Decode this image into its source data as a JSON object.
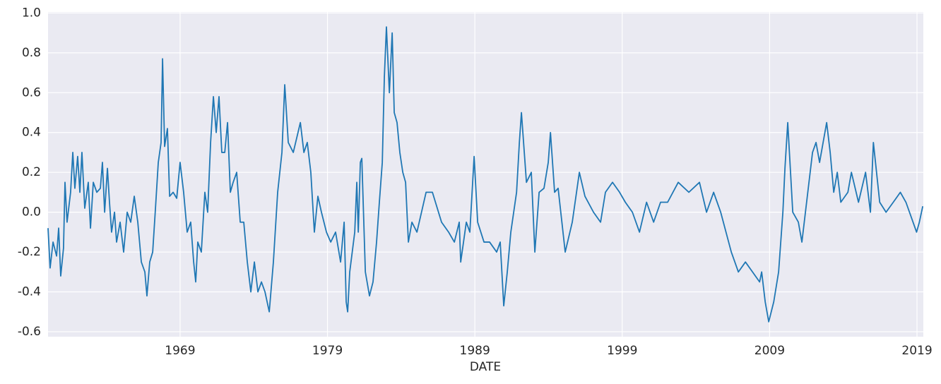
{
  "chart_data": {
    "type": "line",
    "xlabel": "DATE",
    "x": [
      1960.04,
      1960.18,
      1960.38,
      1960.62,
      1960.76,
      1960.9,
      1961.09,
      1961.19,
      1961.33,
      1961.57,
      1961.72,
      1961.86,
      1962.05,
      1962.2,
      1962.34,
      1962.53,
      1962.77,
      1962.92,
      1963.11,
      1963.35,
      1963.59,
      1963.73,
      1963.88,
      1964.07,
      1964.21,
      1964.35,
      1964.55,
      1964.69,
      1964.93,
      1965.17,
      1965.41,
      1965.65,
      1965.89,
      1966.13,
      1966.37,
      1966.61,
      1966.75,
      1966.94,
      1967.14,
      1967.33,
      1967.52,
      1967.71,
      1967.81,
      1967.95,
      1968.14,
      1968.29,
      1968.53,
      1968.77,
      1969.0,
      1969.24,
      1969.48,
      1969.72,
      1969.92,
      1970.06,
      1970.2,
      1970.44,
      1970.68,
      1970.87,
      1971.07,
      1971.26,
      1971.45,
      1971.64,
      1971.83,
      1972.03,
      1972.22,
      1972.41,
      1972.6,
      1972.84,
      1973.08,
      1973.32,
      1973.56,
      1973.8,
      1974.04,
      1974.28,
      1974.52,
      1974.76,
      1975.05,
      1975.33,
      1975.62,
      1975.91,
      1976.1,
      1976.34,
      1976.68,
      1977.16,
      1977.4,
      1977.63,
      1977.87,
      1978.11,
      1978.35,
      1978.59,
      1978.93,
      1979.22,
      1979.55,
      1979.89,
      1980.13,
      1980.27,
      1980.37,
      1980.51,
      1980.85,
      1980.99,
      1981.09,
      1981.23,
      1981.33,
      1981.57,
      1981.85,
      1982.09,
      1982.33,
      1982.52,
      1982.72,
      1982.86,
      1983.0,
      1983.2,
      1983.39,
      1983.53,
      1983.72,
      1983.91,
      1984.11,
      1984.3,
      1984.49,
      1984.73,
      1985.07,
      1985.69,
      1986.12,
      1986.74,
      1987.22,
      1987.61,
      1987.94,
      1988.04,
      1988.42,
      1988.66,
      1988.95,
      1989.19,
      1989.62,
      1990.0,
      1990.48,
      1990.72,
      1990.96,
      1991.2,
      1991.44,
      1991.83,
      1992.02,
      1992.16,
      1992.5,
      1992.83,
      1993.07,
      1993.36,
      1993.69,
      1993.98,
      1994.13,
      1994.41,
      1994.65,
      1995.13,
      1995.61,
      1996.09,
      1996.47,
      1997.05,
      1997.53,
      1997.86,
      1998.34,
      1998.82,
      1999.21,
      1999.69,
      2000.17,
      2000.65,
      2001.13,
      2001.6,
      2002.08,
      2002.8,
      2003.52,
      2004.24,
      2004.72,
      2005.2,
      2005.68,
      2006.4,
      2006.88,
      2007.36,
      2007.84,
      2008.32,
      2008.46,
      2008.7,
      2008.94,
      2009.28,
      2009.61,
      2009.9,
      2010.04,
      2010.23,
      2010.57,
      2010.95,
      2011.19,
      2011.43,
      2011.67,
      2011.91,
      2012.15,
      2012.39,
      2012.87,
      2013.11,
      2013.35,
      2013.59,
      2013.83,
      2014.31,
      2014.55,
      2015.03,
      2015.51,
      2015.84,
      2016.04,
      2016.47,
      2016.9,
      2017.39,
      2017.87,
      2018.25,
      2018.73,
      2018.97,
      2019.16,
      2019.39
    ],
    "series": [
      {
        "color": "#1f77b4",
        "values": [
          -0.08,
          -0.28,
          -0.15,
          -0.22,
          -0.08,
          -0.32,
          -0.18,
          0.15,
          -0.05,
          0.1,
          0.3,
          0.12,
          0.28,
          0.1,
          0.3,
          0.02,
          0.15,
          -0.08,
          0.15,
          0.1,
          0.12,
          0.25,
          0.0,
          0.22,
          0.05,
          -0.1,
          0.0,
          -0.15,
          -0.05,
          -0.2,
          0.0,
          -0.05,
          0.08,
          -0.05,
          -0.25,
          -0.3,
          -0.42,
          -0.25,
          -0.2,
          0.02,
          0.25,
          0.35,
          0.77,
          0.33,
          0.42,
          0.08,
          0.1,
          0.07,
          0.25,
          0.1,
          -0.1,
          -0.05,
          -0.25,
          -0.35,
          -0.15,
          -0.2,
          0.1,
          0.0,
          0.35,
          0.58,
          0.4,
          0.58,
          0.3,
          0.3,
          0.45,
          0.1,
          0.15,
          0.2,
          -0.05,
          -0.05,
          -0.25,
          -0.4,
          -0.25,
          -0.4,
          -0.35,
          -0.4,
          -0.5,
          -0.25,
          0.1,
          0.3,
          0.64,
          0.35,
          0.3,
          0.45,
          0.3,
          0.35,
          0.2,
          -0.1,
          0.08,
          0.0,
          -0.1,
          -0.15,
          -0.1,
          -0.25,
          -0.05,
          -0.45,
          -0.5,
          -0.3,
          -0.1,
          0.15,
          -0.1,
          0.25,
          0.27,
          -0.3,
          -0.42,
          -0.35,
          -0.15,
          0.05,
          0.25,
          0.68,
          0.93,
          0.6,
          0.9,
          0.5,
          0.45,
          0.3,
          0.2,
          0.15,
          -0.15,
          -0.05,
          -0.1,
          0.1,
          0.1,
          -0.05,
          -0.1,
          -0.15,
          -0.05,
          -0.25,
          -0.05,
          -0.1,
          0.28,
          -0.05,
          -0.15,
          -0.15,
          -0.2,
          -0.15,
          -0.47,
          -0.3,
          -0.1,
          0.1,
          0.35,
          0.5,
          0.15,
          0.2,
          -0.2,
          0.1,
          0.12,
          0.25,
          0.4,
          0.1,
          0.12,
          -0.2,
          -0.05,
          0.2,
          0.08,
          0.0,
          -0.05,
          0.1,
          0.15,
          0.1,
          0.05,
          0.0,
          -0.1,
          0.05,
          -0.05,
          0.05,
          0.05,
          0.15,
          0.1,
          0.15,
          0.0,
          0.1,
          0.0,
          -0.2,
          -0.3,
          -0.25,
          -0.3,
          -0.35,
          -0.3,
          -0.45,
          -0.55,
          -0.45,
          -0.3,
          0.0,
          0.22,
          0.45,
          0.0,
          -0.05,
          -0.15,
          0.0,
          0.15,
          0.3,
          0.35,
          0.25,
          0.45,
          0.3,
          0.1,
          0.2,
          0.05,
          0.1,
          0.2,
          0.05,
          0.2,
          0.0,
          0.35,
          0.05,
          0.0,
          0.05,
          0.1,
          0.05,
          -0.05,
          -0.1,
          -0.05,
          0.03
        ]
      }
    ],
    "xlim": [
      1960.04,
      2019.43
    ],
    "xticks": [
      1969,
      1979,
      1989,
      1999,
      2009,
      2019
    ],
    "ylim": [
      -0.625,
      1.005
    ],
    "yticks": [
      -0.6,
      -0.4,
      -0.2,
      0.0,
      0.2,
      0.4,
      0.6,
      0.8,
      1.0
    ],
    "grid": true
  }
}
